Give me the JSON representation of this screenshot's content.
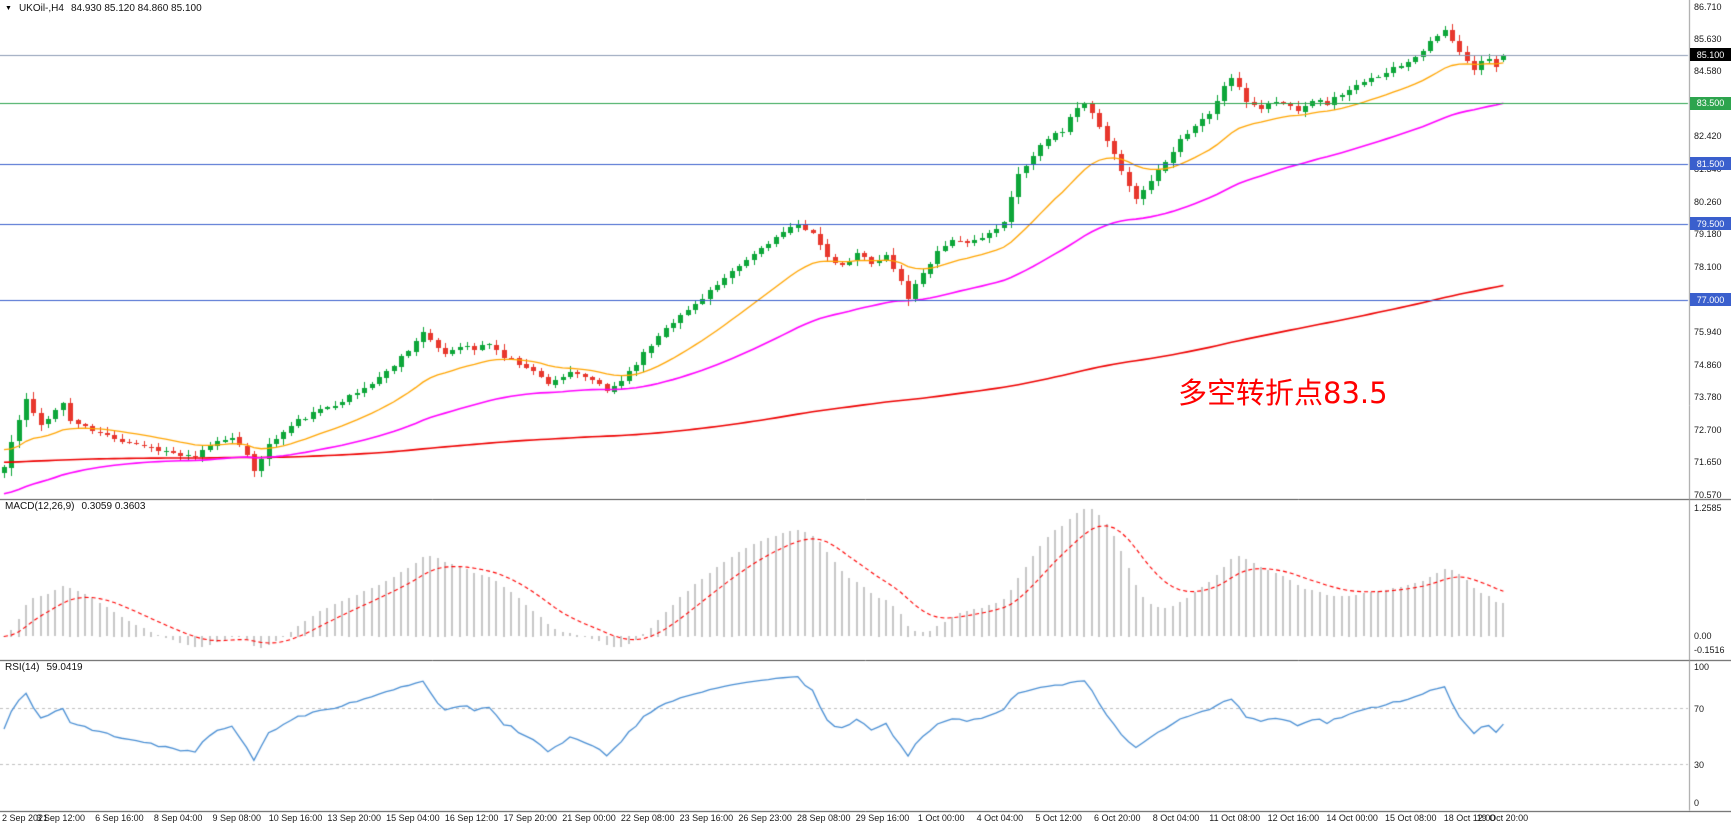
{
  "window": {
    "title": "UKOil-,H4",
    "header": {
      "icon": "▼",
      "symbol": "UKOil-,H4",
      "ohlc": "84.930 85.120 84.860 85.100"
    }
  },
  "colors": {
    "background": "#FFFFFF",
    "candle_up": "#0DA639",
    "candle_down": "#E8372D",
    "ma_fast": "#FFA500",
    "ma_mid": "#FF00FF",
    "ma_slow": "#EE0000",
    "hline_blue": "#3A5FCD",
    "hline_green": "#2DA44E",
    "current_price_line": "#8D9CB5",
    "current_price_box": "#000000",
    "macd_hist": "#C8C8C8",
    "macd_signal": "#FF0000",
    "rsi_line": "#4A8FD4",
    "rsi_levels": "#BFBFBF",
    "separator": "#4D4D4D",
    "axis_text": "#1A1A1A",
    "annotation": "#FF0000"
  },
  "chart_data": {
    "type": "candlestick",
    "symbol": "UKOil-",
    "timeframe": "H4",
    "ohlc_current": {
      "open": 84.93,
      "high": 85.12,
      "low": 84.86,
      "close": 85.1
    },
    "price_axis": {
      "min": 70.57,
      "max": 86.71,
      "ticks": [
        "86.710",
        "85.630",
        "84.580",
        "82.420",
        "81.340",
        "80.260",
        "79.180",
        "78.100",
        "75.940",
        "74.860",
        "73.780",
        "72.700",
        "71.650",
        "70.570"
      ]
    },
    "hlines": [
      {
        "value": 83.5,
        "label": "83.500",
        "style": "green"
      },
      {
        "value": 81.5,
        "label": "81.500",
        "style": "blue"
      },
      {
        "value": 79.5,
        "label": "79.500",
        "style": "blue"
      },
      {
        "value": 77.0,
        "label": "77.000",
        "style": "blue"
      }
    ],
    "current_price": {
      "value": 85.1,
      "label": "85.100"
    },
    "bars": {
      "count": 205,
      "noise_seed": 11,
      "close_anchors": [
        [
          0,
          71.45
        ],
        [
          1,
          72.3
        ],
        [
          3,
          73.7
        ],
        [
          4,
          73.2
        ],
        [
          5,
          72.85
        ],
        [
          7,
          73.35
        ],
        [
          8,
          73.55
        ],
        [
          9,
          73.0
        ],
        [
          12,
          72.65
        ],
        [
          16,
          72.35
        ],
        [
          20,
          72.1
        ],
        [
          24,
          71.85
        ],
        [
          26,
          71.75
        ],
        [
          28,
          72.2
        ],
        [
          31,
          72.5
        ],
        [
          33,
          71.8
        ],
        [
          34,
          71.35
        ],
        [
          36,
          72.2
        ],
        [
          40,
          73.0
        ],
        [
          44,
          73.45
        ],
        [
          48,
          73.9
        ],
        [
          52,
          74.6
        ],
        [
          55,
          75.35
        ],
        [
          57,
          75.9
        ],
        [
          58,
          75.6
        ],
        [
          60,
          75.2
        ],
        [
          62,
          75.5
        ],
        [
          64,
          75.35
        ],
        [
          66,
          75.55
        ],
        [
          68,
          75.1
        ],
        [
          71,
          74.8
        ],
        [
          74,
          74.25
        ],
        [
          77,
          74.55
        ],
        [
          80,
          74.35
        ],
        [
          82,
          73.95
        ],
        [
          84,
          74.35
        ],
        [
          86,
          74.9
        ],
        [
          88,
          75.5
        ],
        [
          90,
          76.1
        ],
        [
          92,
          76.45
        ],
        [
          94,
          76.85
        ],
        [
          96,
          77.3
        ],
        [
          98,
          77.65
        ],
        [
          100,
          78.1
        ],
        [
          102,
          78.5
        ],
        [
          104,
          78.9
        ],
        [
          106,
          79.2
        ],
        [
          108,
          79.45
        ],
        [
          110,
          79.25
        ],
        [
          112,
          78.35
        ],
        [
          114,
          78.1
        ],
        [
          116,
          78.5
        ],
        [
          118,
          78.25
        ],
        [
          120,
          78.45
        ],
        [
          122,
          77.6
        ],
        [
          123,
          77.05
        ],
        [
          125,
          77.9
        ],
        [
          127,
          78.6
        ],
        [
          129,
          79.0
        ],
        [
          131,
          78.8
        ],
        [
          133,
          79.1
        ],
        [
          135,
          79.3
        ],
        [
          136,
          79.55
        ],
        [
          137,
          80.35
        ],
        [
          138,
          81.15
        ],
        [
          139,
          81.5
        ],
        [
          140,
          81.75
        ],
        [
          141,
          82.1
        ],
        [
          142,
          82.35
        ],
        [
          144,
          82.6
        ],
        [
          145,
          83.1
        ],
        [
          147,
          83.45
        ],
        [
          148,
          83.15
        ],
        [
          150,
          82.2
        ],
        [
          152,
          81.3
        ],
        [
          154,
          80.3
        ],
        [
          156,
          80.95
        ],
        [
          158,
          81.6
        ],
        [
          160,
          82.3
        ],
        [
          162,
          82.75
        ],
        [
          164,
          83.15
        ],
        [
          166,
          84.05
        ],
        [
          167,
          84.35
        ],
        [
          168,
          83.95
        ],
        [
          169,
          83.55
        ],
        [
          171,
          83.35
        ],
        [
          173,
          83.55
        ],
        [
          176,
          83.3
        ],
        [
          178,
          83.6
        ],
        [
          180,
          83.5
        ],
        [
          182,
          83.8
        ],
        [
          184,
          84.05
        ],
        [
          186,
          84.3
        ],
        [
          188,
          84.55
        ],
        [
          190,
          84.75
        ],
        [
          192,
          85.05
        ],
        [
          194,
          85.5
        ],
        [
          196,
          85.9
        ],
        [
          197,
          85.55
        ],
        [
          198,
          85.15
        ],
        [
          200,
          84.6
        ],
        [
          201,
          84.85
        ],
        [
          202,
          85.0
        ],
        [
          203,
          84.75
        ],
        [
          204,
          85.1
        ]
      ],
      "last": {
        "open": 84.93,
        "high": 85.12,
        "low": 84.86,
        "close": 85.1
      }
    },
    "indicators": {
      "macd": {
        "name": "MACD(12,26,9)",
        "values": "0.3059 0.3603",
        "params": [
          12,
          26,
          9
        ],
        "axis_labels": [
          "1.2585",
          "0.00",
          "-0.1516"
        ]
      },
      "rsi": {
        "name": "RSI(14)",
        "values": "59.0419",
        "period": 14,
        "levels": [
          70,
          30
        ],
        "axis_labels": [
          "100",
          "70",
          "30",
          "0"
        ]
      }
    },
    "time_axis": {
      "labels": [
        "2 Sep 2021",
        "3 Sep 12:00",
        "6 Sep 16:00",
        "8 Sep 04:00",
        "9 Sep 08:00",
        "10 Sep 16:00",
        "13 Sep 20:00",
        "15 Sep 04:00",
        "16 Sep 12:00",
        "17 Sep 20:00",
        "21 Sep 00:00",
        "22 Sep 08:00",
        "23 Sep 16:00",
        "26 Sep 23:00",
        "28 Sep 08:00",
        "29 Sep 16:00",
        "1 Oct 00:00",
        "4 Oct 04:00",
        "5 Oct 12:00",
        "6 Oct 20:00",
        "8 Oct 04:00",
        "11 Oct 08:00",
        "12 Oct 16:00",
        "14 Oct 00:00",
        "15 Oct 08:00",
        "18 Oct 12:00",
        "19 Oct 20:00"
      ]
    },
    "annotation": {
      "text": "多空转折点83.5"
    }
  }
}
